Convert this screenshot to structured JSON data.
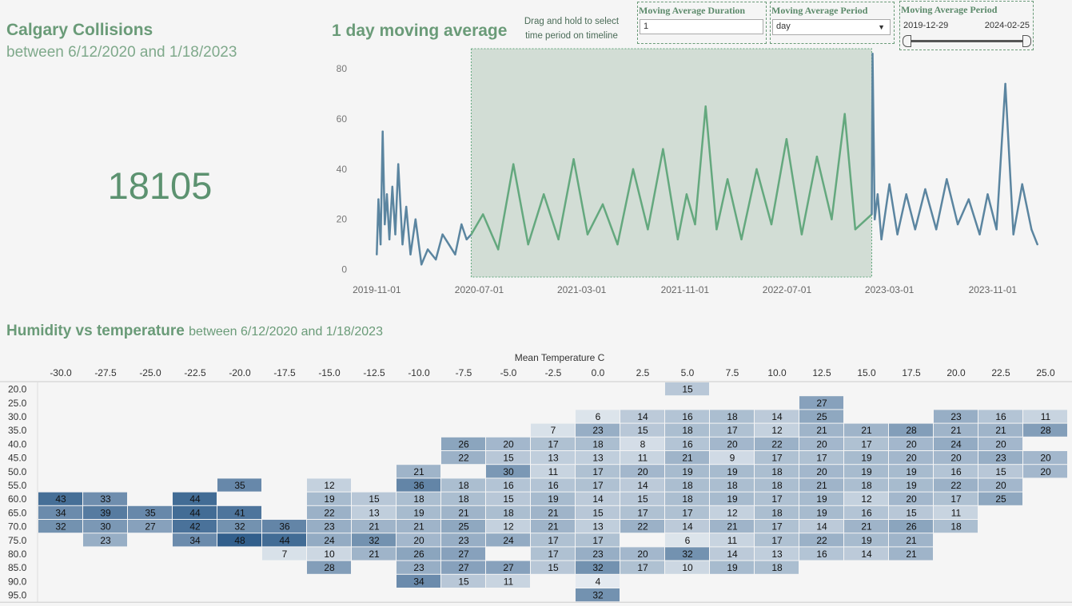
{
  "header": {
    "title": "Calgary Collisions",
    "subtitle": "between 6/12/2020 and 1/18/2023",
    "kpi_value": "18105"
  },
  "chart_header": {
    "title": "1 day moving average",
    "hint": "Drag and hold to select time period on timeline"
  },
  "controls": {
    "duration_label": "Moving Average Duration",
    "duration_value": "1",
    "period_label": "Moving Average Period",
    "period_value": "day",
    "range_label": "Moving Average Period",
    "range_start": "2019-12-29",
    "range_end": "2024-02-25"
  },
  "colors": {
    "highlight": "#64a87e",
    "base": "#5b85a0",
    "selection": "#d2ddd5",
    "accent_text": "#6a9b78"
  },
  "chart_data": [
    {
      "type": "line",
      "x_ticks": [
        "2019-11-01",
        "2020-07-01",
        "2021-03-01",
        "2021-11-01",
        "2022-07-01",
        "2023-03-01",
        "2023-11-01"
      ],
      "y_ticks": [
        0,
        20,
        40,
        60,
        80
      ],
      "ylim": [
        -3,
        88
      ],
      "xlim": [
        "2019-10-20",
        "2024-02-25"
      ],
      "selection": [
        "2020-06-12",
        "2023-01-18"
      ],
      "series": [
        {
          "highlighted": false,
          "x": [
            "2019-11-01",
            "2019-11-05",
            "2019-11-10",
            "2019-11-15",
            "2019-11-20",
            "2019-11-25",
            "2019-12-01",
            "2019-12-08",
            "2019-12-15",
            "2019-12-22",
            "2020-01-01",
            "2020-01-10",
            "2020-01-20",
            "2020-02-01",
            "2020-02-15",
            "2020-03-01",
            "2020-03-20",
            "2020-04-05",
            "2020-04-20",
            "2020-05-05",
            "2020-05-20",
            "2020-06-01",
            "2020-06-12"
          ],
          "y": [
            6,
            28,
            10,
            55,
            18,
            30,
            12,
            33,
            14,
            42,
            10,
            25,
            6,
            20,
            2,
            8,
            4,
            14,
            10,
            6,
            18,
            12,
            14
          ]
        },
        {
          "highlighted": true,
          "x": [
            "2020-06-12",
            "2020-07-10",
            "2020-08-15",
            "2020-09-20",
            "2020-10-25",
            "2020-12-01",
            "2021-01-05",
            "2021-02-10",
            "2021-03-15",
            "2021-04-20",
            "2021-05-25",
            "2021-07-01",
            "2021-08-05",
            "2021-09-10",
            "2021-10-15",
            "2021-11-05",
            "2021-11-25",
            "2021-12-20",
            "2022-01-15",
            "2022-02-10",
            "2022-03-15",
            "2022-04-20",
            "2022-05-25",
            "2022-06-30",
            "2022-08-05",
            "2022-09-10",
            "2022-10-15",
            "2022-11-15",
            "2022-12-10",
            "2023-01-18"
          ],
          "y": [
            14,
            22,
            8,
            42,
            10,
            30,
            12,
            44,
            14,
            26,
            10,
            40,
            16,
            48,
            12,
            30,
            18,
            65,
            16,
            36,
            12,
            40,
            18,
            52,
            14,
            45,
            20,
            62,
            16,
            22
          ]
        },
        {
          "highlighted": false,
          "x": [
            "2023-01-18",
            "2023-01-20",
            "2023-01-25",
            "2023-02-01",
            "2023-02-10",
            "2023-03-01",
            "2023-03-20",
            "2023-04-10",
            "2023-05-01",
            "2023-05-25",
            "2023-06-20",
            "2023-07-15",
            "2023-08-10",
            "2023-09-05",
            "2023-10-01",
            "2023-10-20",
            "2023-11-10",
            "2023-12-01",
            "2023-12-20",
            "2024-01-10",
            "2024-02-01",
            "2024-02-15"
          ],
          "y": [
            22,
            86,
            20,
            30,
            12,
            34,
            14,
            30,
            16,
            32,
            16,
            36,
            18,
            28,
            14,
            30,
            16,
            74,
            14,
            34,
            16,
            10
          ]
        }
      ]
    },
    {
      "type": "heatmap",
      "title": "Humidity vs temperature",
      "subtitle": "between 6/12/2020 and 1/18/2023",
      "xlabel": "Mean Temperature C",
      "x": [
        "-30.0",
        "-27.5",
        "-25.0",
        "-22.5",
        "-20.0",
        "-17.5",
        "-15.0",
        "-12.5",
        "-10.0",
        "-7.5",
        "-5.0",
        "-2.5",
        "0.0",
        "2.5",
        "5.0",
        "7.5",
        "10.0",
        "12.5",
        "15.0",
        "17.5",
        "20.0",
        "22.5",
        "25.0"
      ],
      "y": [
        "20.0",
        "25.0",
        "30.0",
        "35.0",
        "40.0",
        "45.0",
        "50.0",
        "55.0",
        "60.0",
        "65.0",
        "70.0",
        "75.0",
        "80.0",
        "85.0",
        "90.0",
        "95.0"
      ],
      "cells": [
        [
          0,
          14,
          15
        ],
        [
          1,
          17,
          27
        ],
        [
          2,
          12,
          6
        ],
        [
          2,
          13,
          14
        ],
        [
          2,
          14,
          16
        ],
        [
          2,
          15,
          18
        ],
        [
          2,
          16,
          14
        ],
        [
          2,
          17,
          25
        ],
        [
          2,
          20,
          23
        ],
        [
          2,
          21,
          16
        ],
        [
          2,
          22,
          11
        ],
        [
          3,
          11,
          7
        ],
        [
          3,
          12,
          23
        ],
        [
          3,
          13,
          15
        ],
        [
          3,
          14,
          18
        ],
        [
          3,
          15,
          17
        ],
        [
          3,
          16,
          12
        ],
        [
          3,
          17,
          21
        ],
        [
          3,
          18,
          21
        ],
        [
          3,
          19,
          28
        ],
        [
          3,
          20,
          21
        ],
        [
          3,
          21,
          21
        ],
        [
          3,
          22,
          28
        ],
        [
          4,
          9,
          26
        ],
        [
          4,
          10,
          20
        ],
        [
          4,
          11,
          17
        ],
        [
          4,
          12,
          18
        ],
        [
          4,
          13,
          8
        ],
        [
          4,
          14,
          16
        ],
        [
          4,
          15,
          20
        ],
        [
          4,
          16,
          22
        ],
        [
          4,
          17,
          20
        ],
        [
          4,
          18,
          17
        ],
        [
          4,
          19,
          20
        ],
        [
          4,
          20,
          24
        ],
        [
          4,
          21,
          20
        ],
        [
          5,
          9,
          22
        ],
        [
          5,
          10,
          15
        ],
        [
          5,
          11,
          13
        ],
        [
          5,
          12,
          13
        ],
        [
          5,
          13,
          11
        ],
        [
          5,
          14,
          21
        ],
        [
          5,
          15,
          9
        ],
        [
          5,
          16,
          17
        ],
        [
          5,
          17,
          17
        ],
        [
          5,
          18,
          19
        ],
        [
          5,
          19,
          20
        ],
        [
          5,
          20,
          20
        ],
        [
          5,
          21,
          23
        ],
        [
          5,
          22,
          20
        ],
        [
          6,
          8,
          21
        ],
        [
          6,
          10,
          30
        ],
        [
          6,
          11,
          11
        ],
        [
          6,
          12,
          17
        ],
        [
          6,
          13,
          20
        ],
        [
          6,
          14,
          19
        ],
        [
          6,
          15,
          19
        ],
        [
          6,
          16,
          18
        ],
        [
          6,
          17,
          20
        ],
        [
          6,
          18,
          19
        ],
        [
          6,
          19,
          19
        ],
        [
          6,
          20,
          16
        ],
        [
          6,
          21,
          15
        ],
        [
          6,
          22,
          20
        ],
        [
          7,
          4,
          35
        ],
        [
          7,
          6,
          12
        ],
        [
          7,
          8,
          36
        ],
        [
          7,
          9,
          18
        ],
        [
          7,
          10,
          16
        ],
        [
          7,
          11,
          16
        ],
        [
          7,
          12,
          17
        ],
        [
          7,
          13,
          14
        ],
        [
          7,
          14,
          18
        ],
        [
          7,
          15,
          18
        ],
        [
          7,
          16,
          18
        ],
        [
          7,
          17,
          21
        ],
        [
          7,
          18,
          18
        ],
        [
          7,
          19,
          19
        ],
        [
          7,
          20,
          22
        ],
        [
          7,
          21,
          20
        ],
        [
          8,
          0,
          43
        ],
        [
          8,
          1,
          33
        ],
        [
          8,
          3,
          44
        ],
        [
          8,
          6,
          19
        ],
        [
          8,
          7,
          15
        ],
        [
          8,
          8,
          18
        ],
        [
          8,
          9,
          18
        ],
        [
          8,
          10,
          15
        ],
        [
          8,
          11,
          19
        ],
        [
          8,
          12,
          14
        ],
        [
          8,
          13,
          15
        ],
        [
          8,
          14,
          18
        ],
        [
          8,
          15,
          19
        ],
        [
          8,
          16,
          17
        ],
        [
          8,
          17,
          19
        ],
        [
          8,
          18,
          12
        ],
        [
          8,
          19,
          20
        ],
        [
          8,
          20,
          17
        ],
        [
          8,
          21,
          25
        ],
        [
          9,
          0,
          34
        ],
        [
          9,
          1,
          39
        ],
        [
          9,
          2,
          35
        ],
        [
          9,
          3,
          44
        ],
        [
          9,
          4,
          41
        ],
        [
          9,
          6,
          22
        ],
        [
          9,
          7,
          13
        ],
        [
          9,
          8,
          19
        ],
        [
          9,
          9,
          21
        ],
        [
          9,
          10,
          18
        ],
        [
          9,
          11,
          21
        ],
        [
          9,
          12,
          15
        ],
        [
          9,
          13,
          17
        ],
        [
          9,
          14,
          17
        ],
        [
          9,
          15,
          12
        ],
        [
          9,
          16,
          18
        ],
        [
          9,
          17,
          19
        ],
        [
          9,
          18,
          16
        ],
        [
          9,
          19,
          15
        ],
        [
          9,
          20,
          11
        ],
        [
          10,
          0,
          32
        ],
        [
          10,
          1,
          30
        ],
        [
          10,
          2,
          27
        ],
        [
          10,
          3,
          42
        ],
        [
          10,
          4,
          32
        ],
        [
          10,
          5,
          36
        ],
        [
          10,
          6,
          23
        ],
        [
          10,
          7,
          21
        ],
        [
          10,
          8,
          21
        ],
        [
          10,
          9,
          25
        ],
        [
          10,
          10,
          12
        ],
        [
          10,
          11,
          21
        ],
        [
          10,
          12,
          13
        ],
        [
          10,
          13,
          22
        ],
        [
          10,
          14,
          14
        ],
        [
          10,
          15,
          21
        ],
        [
          10,
          16,
          17
        ],
        [
          10,
          17,
          14
        ],
        [
          10,
          18,
          21
        ],
        [
          10,
          19,
          26
        ],
        [
          10,
          20,
          18
        ],
        [
          11,
          1,
          23
        ],
        [
          11,
          3,
          34
        ],
        [
          11,
          4,
          48
        ],
        [
          11,
          5,
          44
        ],
        [
          11,
          6,
          24
        ],
        [
          11,
          7,
          32
        ],
        [
          11,
          8,
          20
        ],
        [
          11,
          9,
          23
        ],
        [
          11,
          10,
          24
        ],
        [
          11,
          11,
          17
        ],
        [
          11,
          12,
          17
        ],
        [
          11,
          14,
          6
        ],
        [
          11,
          15,
          11
        ],
        [
          11,
          16,
          17
        ],
        [
          11,
          17,
          22
        ],
        [
          11,
          18,
          19
        ],
        [
          11,
          19,
          21
        ],
        [
          12,
          5,
          7
        ],
        [
          12,
          6,
          10
        ],
        [
          12,
          7,
          21
        ],
        [
          12,
          8,
          26
        ],
        [
          12,
          9,
          27
        ],
        [
          12,
          11,
          17
        ],
        [
          12,
          12,
          23
        ],
        [
          12,
          13,
          20
        ],
        [
          12,
          14,
          32
        ],
        [
          12,
          15,
          14
        ],
        [
          12,
          16,
          13
        ],
        [
          12,
          17,
          16
        ],
        [
          12,
          18,
          14
        ],
        [
          12,
          19,
          21
        ],
        [
          13,
          6,
          28
        ],
        [
          13,
          8,
          23
        ],
        [
          13,
          9,
          27
        ],
        [
          13,
          10,
          27
        ],
        [
          13,
          11,
          15
        ],
        [
          13,
          12,
          32
        ],
        [
          13,
          13,
          17
        ],
        [
          13,
          14,
          10
        ],
        [
          13,
          15,
          19
        ],
        [
          13,
          16,
          18
        ],
        [
          14,
          8,
          34
        ],
        [
          14,
          9,
          15
        ],
        [
          14,
          10,
          11
        ],
        [
          14,
          12,
          4
        ],
        [
          15,
          12,
          32
        ]
      ]
    }
  ]
}
